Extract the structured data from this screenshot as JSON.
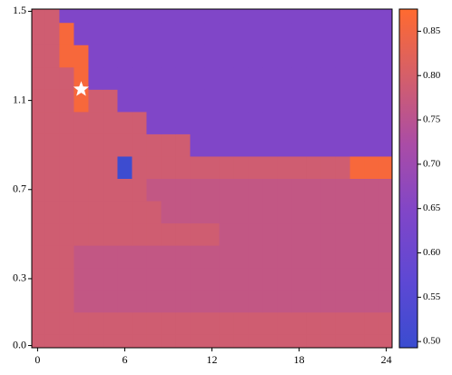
{
  "chart_data": {
    "type": "heatmap",
    "x": [
      0,
      1,
      2,
      3,
      4,
      5,
      6,
      7,
      8,
      9,
      10,
      11,
      12,
      13,
      14,
      15,
      16,
      17,
      18,
      19,
      20,
      21,
      22,
      23,
      24
    ],
    "y": [
      0,
      0.1,
      0.2,
      0.3,
      0.4,
      0.5,
      0.6,
      0.7,
      0.8,
      0.9,
      1.0,
      1.1,
      1.2,
      1.3,
      1.4,
      1.5
    ],
    "z": [
      [
        0.79,
        0.79,
        0.79,
        0.79,
        0.79,
        0.79,
        0.79,
        0.79,
        0.79,
        0.79,
        0.79,
        0.79,
        0.79,
        0.79,
        0.79,
        0.79,
        0.79,
        0.79,
        0.79,
        0.79,
        0.79,
        0.79,
        0.79,
        0.79,
        0.79
      ],
      [
        0.79,
        0.79,
        0.79,
        0.79,
        0.79,
        0.79,
        0.79,
        0.79,
        0.79,
        0.79,
        0.79,
        0.79,
        0.79,
        0.79,
        0.79,
        0.79,
        0.79,
        0.79,
        0.79,
        0.79,
        0.79,
        0.79,
        0.79,
        0.79,
        0.79
      ],
      [
        0.79,
        0.79,
        0.79,
        0.765,
        0.765,
        0.765,
        0.765,
        0.765,
        0.765,
        0.765,
        0.765,
        0.765,
        0.765,
        0.765,
        0.765,
        0.765,
        0.765,
        0.765,
        0.765,
        0.765,
        0.765,
        0.765,
        0.765,
        0.765,
        0.765
      ],
      [
        0.79,
        0.79,
        0.79,
        0.765,
        0.765,
        0.765,
        0.765,
        0.765,
        0.765,
        0.765,
        0.765,
        0.765,
        0.765,
        0.765,
        0.765,
        0.765,
        0.765,
        0.765,
        0.765,
        0.765,
        0.765,
        0.765,
        0.765,
        0.765,
        0.765
      ],
      [
        0.79,
        0.79,
        0.79,
        0.765,
        0.765,
        0.765,
        0.765,
        0.765,
        0.765,
        0.765,
        0.765,
        0.765,
        0.765,
        0.765,
        0.765,
        0.765,
        0.765,
        0.765,
        0.765,
        0.765,
        0.765,
        0.765,
        0.765,
        0.765,
        0.765
      ],
      [
        0.79,
        0.79,
        0.79,
        0.79,
        0.79,
        0.79,
        0.79,
        0.79,
        0.79,
        0.79,
        0.79,
        0.79,
        0.79,
        0.765,
        0.765,
        0.765,
        0.765,
        0.765,
        0.765,
        0.765,
        0.765,
        0.765,
        0.765,
        0.765,
        0.765
      ],
      [
        0.79,
        0.79,
        0.79,
        0.79,
        0.79,
        0.79,
        0.79,
        0.79,
        0.79,
        0.765,
        0.765,
        0.765,
        0.765,
        0.765,
        0.765,
        0.765,
        0.765,
        0.765,
        0.765,
        0.765,
        0.765,
        0.765,
        0.765,
        0.765,
        0.765
      ],
      [
        0.79,
        0.79,
        0.79,
        0.79,
        0.79,
        0.79,
        0.79,
        0.79,
        0.765,
        0.765,
        0.765,
        0.765,
        0.765,
        0.765,
        0.765,
        0.765,
        0.765,
        0.765,
        0.765,
        0.765,
        0.765,
        0.765,
        0.765,
        0.765,
        0.765
      ],
      [
        0.79,
        0.79,
        0.79,
        0.79,
        0.79,
        0.79,
        0.5,
        0.79,
        0.79,
        0.79,
        0.79,
        0.79,
        0.79,
        0.79,
        0.79,
        0.79,
        0.79,
        0.79,
        0.79,
        0.79,
        0.79,
        0.79,
        0.86,
        0.86,
        0.86
      ],
      [
        0.79,
        0.79,
        0.79,
        0.79,
        0.79,
        0.79,
        0.79,
        0.79,
        0.79,
        0.79,
        0.79,
        0.645,
        0.645,
        0.645,
        0.645,
        0.645,
        0.645,
        0.645,
        0.645,
        0.645,
        0.645,
        0.645,
        0.645,
        0.645,
        0.645
      ],
      [
        0.79,
        0.79,
        0.79,
        0.79,
        0.79,
        0.79,
        0.79,
        0.79,
        0.645,
        0.645,
        0.645,
        0.645,
        0.645,
        0.645,
        0.645,
        0.645,
        0.645,
        0.645,
        0.645,
        0.645,
        0.645,
        0.645,
        0.645,
        0.645,
        0.645
      ],
      [
        0.79,
        0.79,
        0.79,
        0.86,
        0.79,
        0.79,
        0.645,
        0.645,
        0.645,
        0.645,
        0.645,
        0.645,
        0.645,
        0.645,
        0.645,
        0.645,
        0.645,
        0.645,
        0.645,
        0.645,
        0.645,
        0.645,
        0.645,
        0.645,
        0.645
      ],
      [
        0.79,
        0.79,
        0.79,
        0.86,
        0.645,
        0.645,
        0.645,
        0.645,
        0.645,
        0.645,
        0.645,
        0.645,
        0.645,
        0.645,
        0.645,
        0.645,
        0.645,
        0.645,
        0.645,
        0.645,
        0.645,
        0.645,
        0.645,
        0.645,
        0.645
      ],
      [
        0.79,
        0.79,
        0.86,
        0.86,
        0.645,
        0.645,
        0.645,
        0.645,
        0.645,
        0.645,
        0.645,
        0.645,
        0.645,
        0.645,
        0.645,
        0.645,
        0.645,
        0.645,
        0.645,
        0.645,
        0.645,
        0.645,
        0.645,
        0.645,
        0.645
      ],
      [
        0.79,
        0.79,
        0.86,
        0.645,
        0.645,
        0.645,
        0.645,
        0.645,
        0.645,
        0.645,
        0.645,
        0.645,
        0.645,
        0.645,
        0.645,
        0.645,
        0.645,
        0.645,
        0.645,
        0.645,
        0.645,
        0.645,
        0.645,
        0.645,
        0.645
      ],
      [
        0.79,
        0.79,
        0.645,
        0.645,
        0.645,
        0.645,
        0.645,
        0.645,
        0.645,
        0.645,
        0.645,
        0.645,
        0.645,
        0.645,
        0.645,
        0.645,
        0.645,
        0.645,
        0.645,
        0.645,
        0.645,
        0.645,
        0.645,
        0.645,
        0.645
      ]
    ],
    "xlim": [
      -0.4,
      24.4
    ],
    "xticks": [
      0,
      6,
      12,
      18,
      24
    ],
    "ylim": [
      -0.01,
      1.51
    ],
    "yticks": [
      {
        "value": 0,
        "label": "0.0"
      },
      0.3,
      0.7,
      1.1,
      1.5
    ],
    "clim": [
      0.493,
      0.875
    ],
    "cticks": [
      {
        "value": 0.5,
        "label": "0.50"
      },
      {
        "value": 0.55,
        "label": "0.55"
      },
      {
        "value": 0.6,
        "label": "0.60"
      },
      {
        "value": 0.65,
        "label": "0.65"
      },
      {
        "value": 0.7,
        "label": "0.70"
      },
      {
        "value": 0.75,
        "label": "0.75"
      },
      {
        "value": 0.8,
        "label": "0.80"
      },
      {
        "value": 0.85,
        "label": "0.85"
      }
    ],
    "colormap": [
      "#3a4cd0",
      "#5e48d4",
      "#8046c8",
      "#aa4ca6",
      "#d45f6a",
      "#ff6a30"
    ],
    "marker": {
      "x": 3,
      "y": 1.15,
      "color": "#ffffff"
    }
  }
}
